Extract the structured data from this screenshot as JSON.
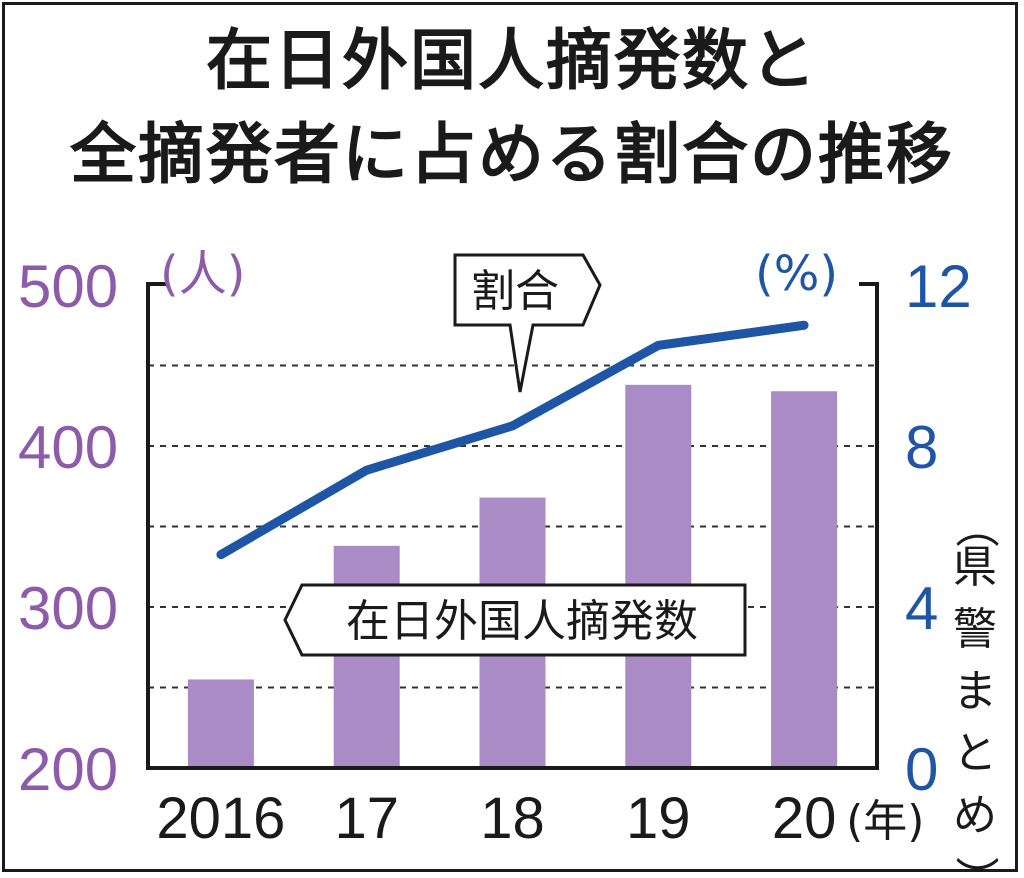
{
  "chart_data": {
    "type": "bar+line",
    "title": "在日外国人摘発数と",
    "subtitle": "全摘発者に占める割合の推移",
    "categories": [
      "2016",
      "17",
      "18",
      "19",
      "20"
    ],
    "x_unit": "(年)",
    "series": [
      {
        "name": "在日外国人摘発数",
        "type": "bar",
        "axis": "left",
        "values": [
          255,
          338,
          368,
          438,
          434
        ],
        "color": "#a98bc6"
      },
      {
        "name": "割合",
        "type": "line",
        "axis": "right",
        "values": [
          5.3,
          7.4,
          8.5,
          10.5,
          11.0
        ],
        "color": "#1e55a5"
      }
    ],
    "left_axis": {
      "unit": "(人)",
      "ylim": [
        200,
        500
      ],
      "ticks": [
        "500",
        "400",
        "300",
        "200"
      ],
      "color": "#8d5ba9"
    },
    "right_axis": {
      "unit": "(%)",
      "ylim": [
        0,
        12
      ],
      "ticks": [
        "12",
        "8",
        "4",
        "0"
      ],
      "color": "#1e55a5"
    },
    "gridlines": "dashed",
    "source": "（県警まとめ）"
  }
}
